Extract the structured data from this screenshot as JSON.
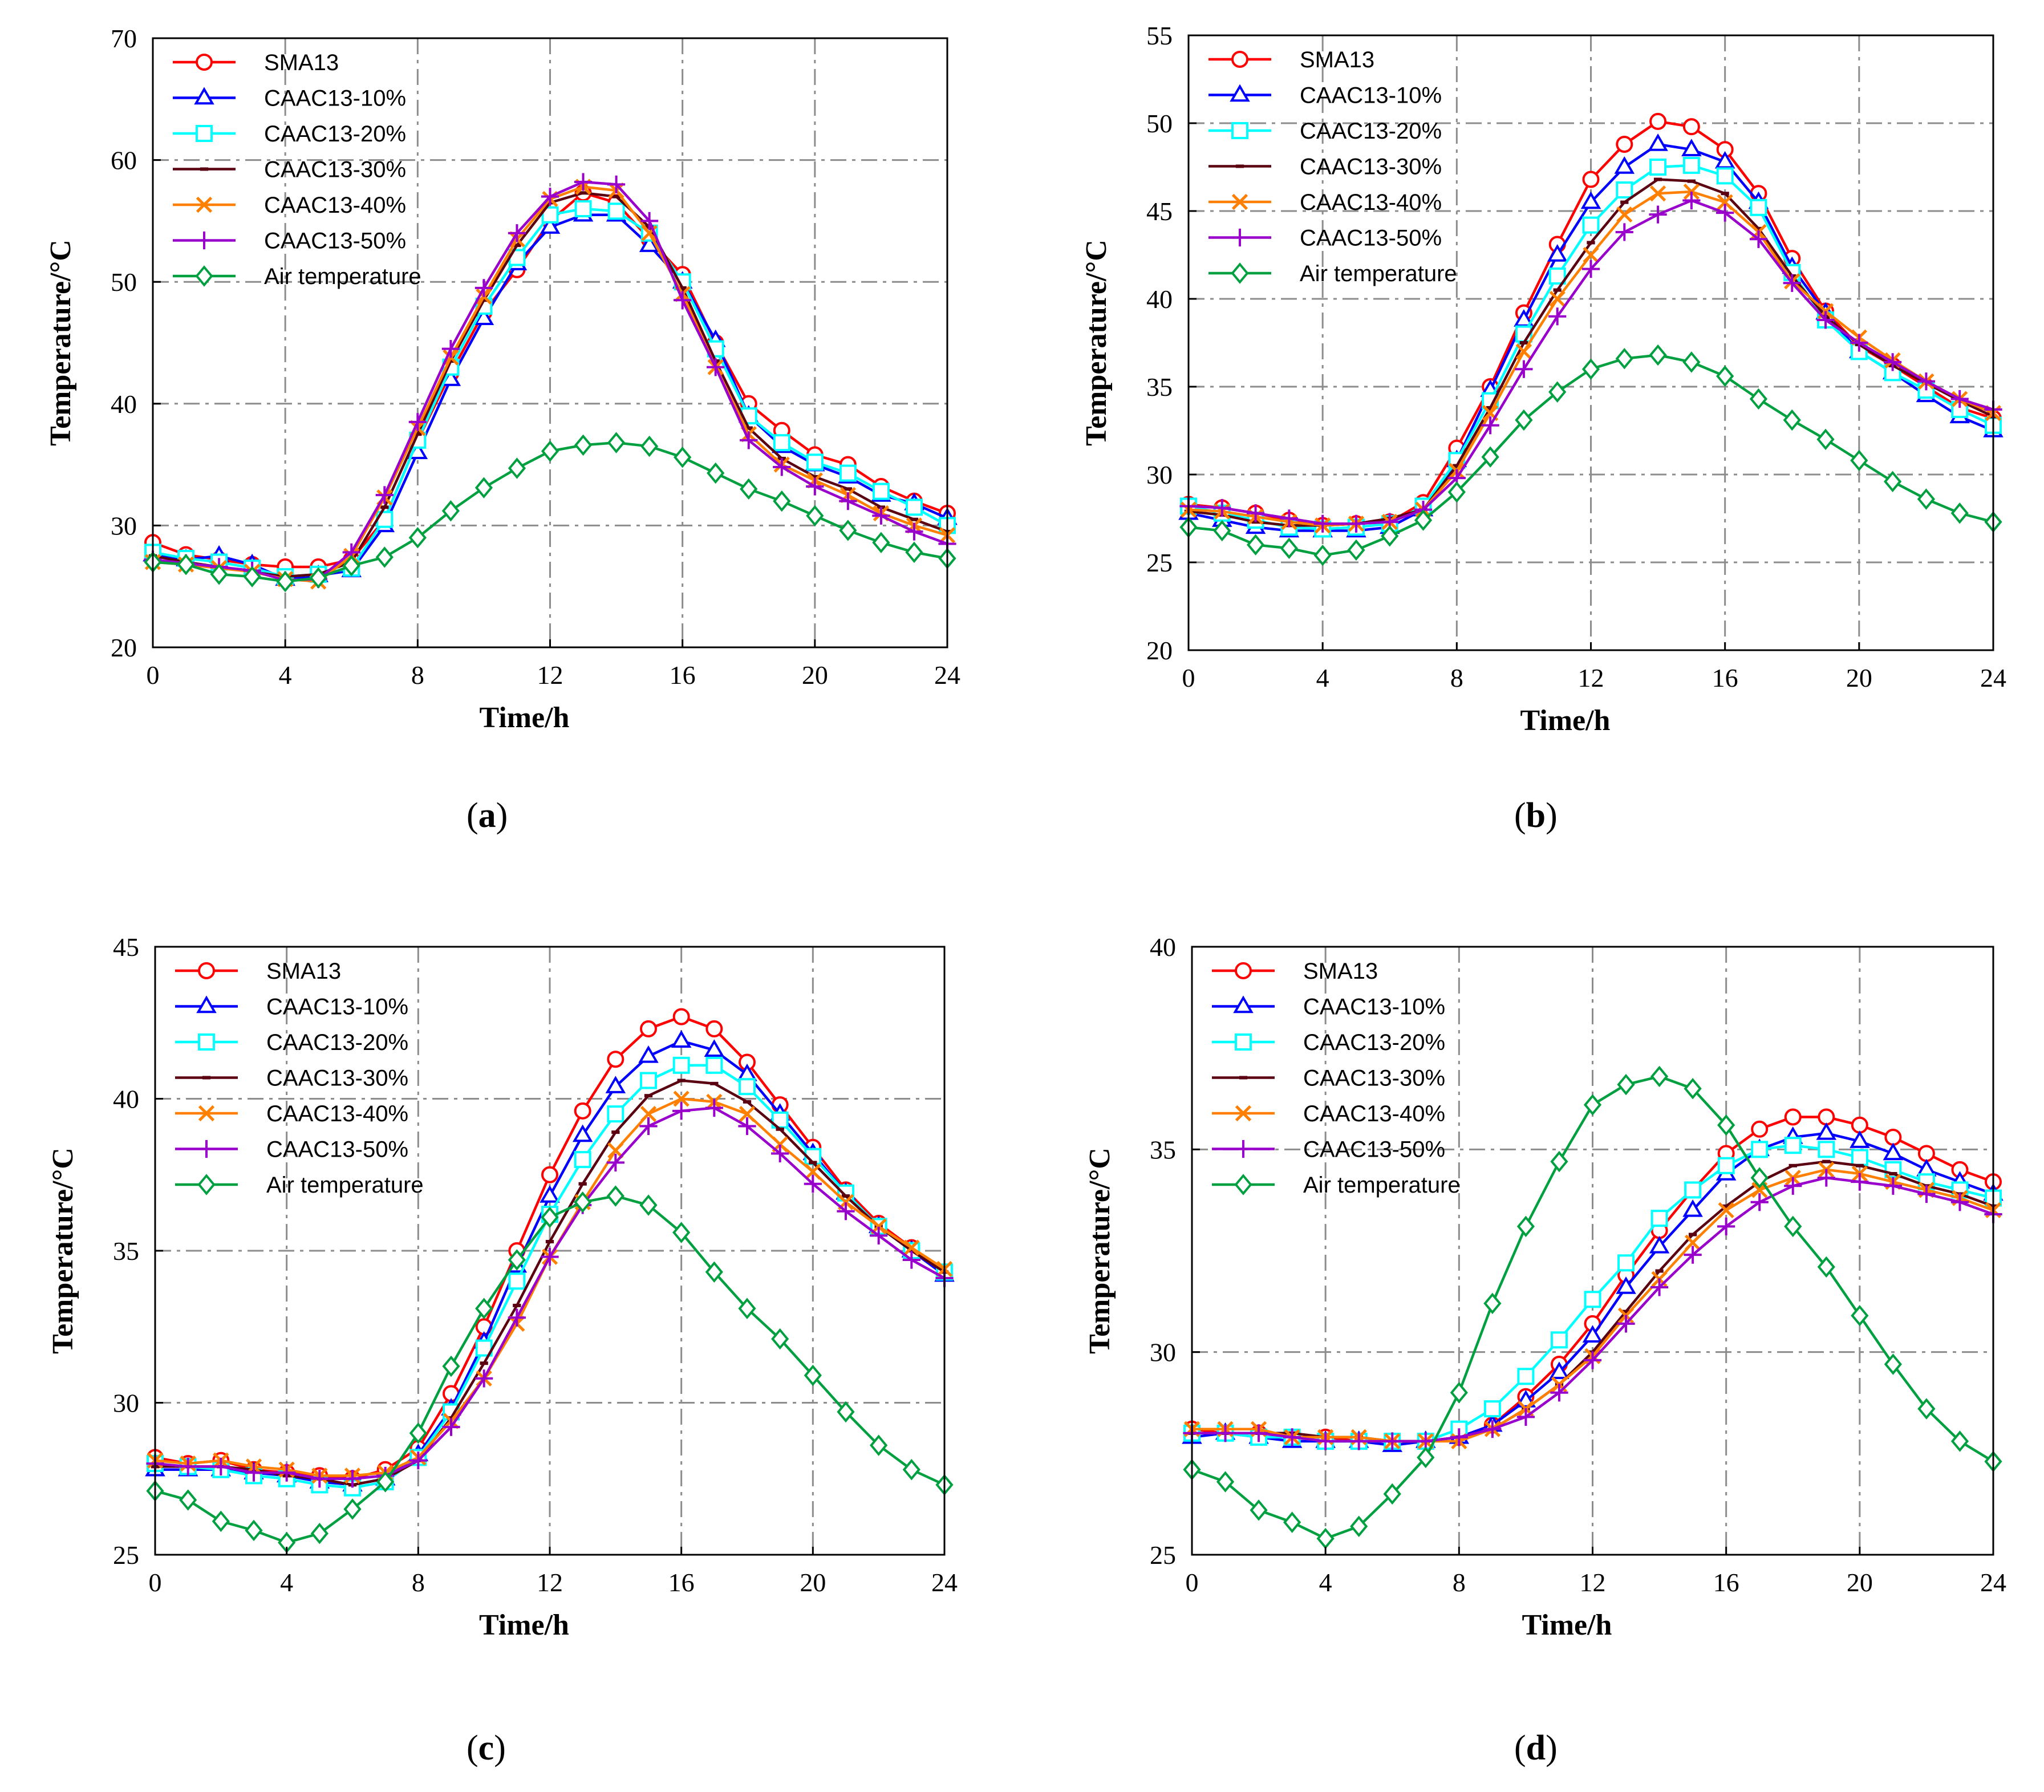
{
  "chart_data": [
    {
      "panel": "(a)",
      "type": "line",
      "xlabel": "Time/h",
      "ylabel": "Temperature/°C",
      "xlim": [
        0,
        24
      ],
      "ylim": [
        20,
        70
      ],
      "xticks": [
        0,
        4,
        8,
        12,
        16,
        20,
        24
      ],
      "yticks": [
        20,
        30,
        40,
        50,
        60,
        70
      ],
      "grid": true,
      "legend": "top-left",
      "x": [
        0,
        1,
        2,
        3,
        4,
        5,
        6,
        7,
        8,
        9,
        10,
        11,
        12,
        13,
        14,
        15,
        16,
        17,
        18,
        19,
        20,
        21,
        22,
        23,
        24
      ],
      "series": [
        {
          "name": "SMA13",
          "color": "#ff0000",
          "marker": "circle",
          "values": [
            28.6,
            27.6,
            27.2,
            26.8,
            26.6,
            26.6,
            27.2,
            30.5,
            37.0,
            42.5,
            47.5,
            51.0,
            55.0,
            57.3,
            56.5,
            53.5,
            50.6,
            45.0,
            40.0,
            37.8,
            35.8,
            35.0,
            33.2,
            32.0,
            31.0
          ]
        },
        {
          "name": "CAAC13-10%",
          "color": "#0000ff",
          "marker": "triangle",
          "values": [
            27.6,
            27.2,
            27.5,
            26.8,
            25.6,
            25.9,
            26.3,
            30.0,
            36.0,
            42.0,
            47.0,
            51.5,
            54.5,
            55.5,
            55.5,
            53.0,
            50.0,
            45.2,
            39.0,
            36.5,
            35.0,
            34.0,
            32.5,
            31.8,
            30.6
          ]
        },
        {
          "name": "CAAC13-20%",
          "color": "#00ffff",
          "marker": "square",
          "values": [
            27.8,
            27.3,
            27.0,
            26.5,
            25.8,
            26.0,
            26.5,
            30.5,
            37.0,
            43.0,
            48.0,
            52.0,
            55.5,
            56.0,
            55.8,
            54.0,
            50.0,
            44.5,
            39.0,
            36.8,
            35.2,
            34.3,
            32.8,
            31.5,
            30.0
          ]
        },
        {
          "name": "CAAC13-30%",
          "color": "#5a0010",
          "marker": "dash",
          "values": [
            27.5,
            27.0,
            26.6,
            26.2,
            25.8,
            26.0,
            27.0,
            31.5,
            37.5,
            43.5,
            48.5,
            53.0,
            56.5,
            57.3,
            57.0,
            54.5,
            49.5,
            43.5,
            38.0,
            35.5,
            34.0,
            33.0,
            31.5,
            30.5,
            29.5
          ]
        },
        {
          "name": "CAAC13-40%",
          "color": "#ff7f00",
          "marker": "x",
          "values": [
            27.0,
            26.8,
            26.5,
            26.2,
            25.6,
            25.4,
            27.5,
            32.3,
            38.0,
            43.8,
            48.8,
            53.5,
            56.8,
            57.8,
            57.5,
            54.0,
            49.0,
            43.0,
            37.5,
            35.0,
            33.7,
            32.5,
            31.0,
            30.0,
            29.2
          ]
        },
        {
          "name": "CAAC13-50%",
          "color": "#9900cc",
          "marker": "plus",
          "values": [
            27.2,
            26.9,
            26.6,
            26.3,
            25.5,
            25.6,
            27.8,
            32.5,
            38.5,
            44.5,
            49.5,
            54.0,
            57.0,
            58.2,
            58.0,
            55.0,
            48.5,
            43.0,
            37.0,
            34.8,
            33.2,
            32.0,
            30.8,
            29.5,
            28.5
          ]
        },
        {
          "name": "Air temperature",
          "color": "#00a040",
          "marker": "diamond",
          "values": [
            27.0,
            26.8,
            26.0,
            25.8,
            25.4,
            25.7,
            26.7,
            27.4,
            29.0,
            31.2,
            33.1,
            34.7,
            36.1,
            36.6,
            36.8,
            36.5,
            35.6,
            34.3,
            33.0,
            32.0,
            30.8,
            29.6,
            28.6,
            27.8,
            27.3
          ]
        }
      ]
    },
    {
      "panel": "(b)",
      "type": "line",
      "xlabel": "Time/h",
      "ylabel": "Temperature/°C",
      "xlim": [
        0,
        24
      ],
      "ylim": [
        20,
        55
      ],
      "xticks": [
        0,
        4,
        8,
        12,
        16,
        20,
        24
      ],
      "yticks": [
        20,
        25,
        30,
        35,
        40,
        45,
        50,
        55
      ],
      "grid": true,
      "legend": "top-left",
      "x": [
        0,
        1,
        2,
        3,
        4,
        5,
        6,
        7,
        8,
        9,
        10,
        11,
        12,
        13,
        14,
        15,
        16,
        17,
        18,
        19,
        20,
        21,
        22,
        23,
        24
      ],
      "series": [
        {
          "name": "SMA13",
          "color": "#ff0000",
          "marker": "circle",
          "values": [
            28.3,
            28.1,
            27.8,
            27.4,
            27.1,
            27.2,
            27.3,
            28.4,
            31.5,
            35.0,
            39.2,
            43.1,
            46.8,
            48.8,
            50.1,
            49.8,
            48.5,
            46.0,
            42.3,
            39.3,
            37.3,
            36.2,
            35.0,
            33.8,
            33.2
          ]
        },
        {
          "name": "CAAC13-10%",
          "color": "#0000ff",
          "marker": "triangle",
          "values": [
            27.8,
            27.4,
            27.0,
            26.8,
            26.8,
            26.8,
            27.0,
            28.0,
            30.8,
            34.8,
            38.8,
            42.5,
            45.5,
            47.5,
            48.8,
            48.5,
            47.8,
            45.5,
            41.8,
            39.2,
            37.0,
            35.8,
            34.5,
            33.3,
            32.5
          ]
        },
        {
          "name": "CAAC13-20%",
          "color": "#00ffff",
          "marker": "square",
          "values": [
            28.2,
            27.8,
            27.4,
            27.0,
            26.9,
            27.0,
            27.2,
            28.2,
            30.8,
            34.2,
            38.0,
            41.3,
            44.2,
            46.2,
            47.5,
            47.6,
            47.0,
            45.2,
            41.5,
            38.8,
            37.0,
            35.8,
            34.8,
            33.7,
            32.8
          ]
        },
        {
          "name": "CAAC13-30%",
          "color": "#5a0010",
          "marker": "dash",
          "values": [
            27.9,
            27.7,
            27.3,
            27.1,
            27.1,
            27.2,
            27.5,
            28.0,
            30.5,
            33.8,
            37.5,
            40.5,
            43.2,
            45.5,
            46.8,
            46.7,
            46.0,
            44.0,
            41.3,
            39.0,
            37.4,
            36.2,
            35.2,
            34.2,
            33.3
          ]
        },
        {
          "name": "CAAC13-40%",
          "color": "#ff7f00",
          "marker": "x",
          "values": [
            28.0,
            27.9,
            27.6,
            27.3,
            27.1,
            27.2,
            27.3,
            28.0,
            30.2,
            33.5,
            37.0,
            40.0,
            42.5,
            44.8,
            46.0,
            46.1,
            45.5,
            43.8,
            41.0,
            39.3,
            37.8,
            36.5,
            35.3,
            34.3,
            33.5
          ]
        },
        {
          "name": "CAAC13-50%",
          "color": "#9900cc",
          "marker": "plus",
          "values": [
            28.2,
            28.1,
            27.8,
            27.5,
            27.2,
            27.2,
            27.3,
            28.0,
            29.8,
            32.8,
            36.0,
            39.0,
            41.7,
            43.8,
            44.8,
            45.6,
            44.9,
            43.4,
            40.9,
            38.8,
            37.5,
            36.4,
            35.3,
            34.3,
            33.7
          ]
        },
        {
          "name": "Air temperature",
          "color": "#00a040",
          "marker": "diamond",
          "values": [
            27.0,
            26.8,
            26.0,
            25.8,
            25.4,
            25.7,
            26.5,
            27.4,
            29.0,
            31.0,
            33.1,
            34.7,
            36.0,
            36.6,
            36.8,
            36.4,
            35.6,
            34.3,
            33.1,
            32.0,
            30.8,
            29.6,
            28.6,
            27.8,
            27.3
          ]
        }
      ]
    },
    {
      "panel": "(c)",
      "type": "line",
      "xlabel": "Time/h",
      "ylabel": "Temperature/°C",
      "xlim": [
        0,
        24
      ],
      "ylim": [
        25,
        45
      ],
      "xticks": [
        0,
        4,
        8,
        12,
        16,
        20,
        24
      ],
      "yticks": [
        25,
        30,
        35,
        40,
        45
      ],
      "grid": true,
      "legend": "top-left",
      "x": [
        0,
        1,
        2,
        3,
        4,
        5,
        6,
        7,
        8,
        9,
        10,
        11,
        12,
        13,
        14,
        15,
        16,
        17,
        18,
        19,
        20,
        21,
        22,
        23,
        24
      ],
      "series": [
        {
          "name": "SMA13",
          "color": "#ff0000",
          "marker": "circle",
          "values": [
            28.2,
            28.0,
            28.1,
            27.8,
            27.7,
            27.6,
            27.5,
            27.8,
            28.5,
            30.3,
            32.5,
            35.0,
            37.5,
            39.6,
            41.3,
            42.3,
            42.7,
            42.3,
            41.2,
            39.8,
            38.4,
            37.0,
            35.9,
            35.1,
            34.3
          ]
        },
        {
          "name": "CAAC13-10%",
          "color": "#0000ff",
          "marker": "triangle",
          "values": [
            27.8,
            27.8,
            27.8,
            27.7,
            27.6,
            27.4,
            27.3,
            27.5,
            28.3,
            29.8,
            32.0,
            34.5,
            36.8,
            38.8,
            40.4,
            41.4,
            41.9,
            41.6,
            40.8,
            39.5,
            38.2,
            36.9,
            35.8,
            35.0,
            34.2
          ]
        },
        {
          "name": "CAAC13-20%",
          "color": "#00ffff",
          "marker": "square",
          "values": [
            28.0,
            27.9,
            27.8,
            27.6,
            27.5,
            27.3,
            27.2,
            27.4,
            28.2,
            29.7,
            31.8,
            34.0,
            36.2,
            38.0,
            39.5,
            40.6,
            41.1,
            41.1,
            40.4,
            39.3,
            38.1,
            36.9,
            35.8,
            35.0,
            34.3
          ]
        },
        {
          "name": "CAAC13-30%",
          "color": "#5a0010",
          "marker": "dash",
          "values": [
            27.9,
            27.9,
            27.9,
            27.8,
            27.6,
            27.5,
            27.3,
            27.5,
            28.1,
            29.5,
            31.3,
            33.2,
            35.3,
            37.2,
            38.9,
            40.1,
            40.6,
            40.5,
            39.9,
            39.0,
            37.9,
            36.8,
            35.8,
            35.0,
            34.3
          ]
        },
        {
          "name": "CAAC13-40%",
          "color": "#ff7f00",
          "marker": "x",
          "values": [
            28.1,
            28.0,
            28.1,
            27.9,
            27.8,
            27.6,
            27.6,
            27.7,
            28.2,
            29.4,
            30.8,
            32.6,
            34.8,
            36.6,
            38.3,
            39.5,
            40.0,
            39.9,
            39.5,
            38.5,
            37.6,
            36.6,
            35.8,
            35.1,
            34.4
          ]
        },
        {
          "name": "CAAC13-50%",
          "color": "#9900cc",
          "marker": "plus",
          "values": [
            28.0,
            27.9,
            27.9,
            27.7,
            27.7,
            27.5,
            27.5,
            27.6,
            28.1,
            29.2,
            30.8,
            32.8,
            34.8,
            36.5,
            37.9,
            39.1,
            39.6,
            39.7,
            39.1,
            38.2,
            37.2,
            36.3,
            35.5,
            34.7,
            34.1
          ]
        },
        {
          "name": "Air temperature",
          "color": "#00a040",
          "marker": "diamond",
          "values": [
            27.1,
            26.8,
            26.1,
            25.8,
            25.4,
            25.7,
            26.5,
            27.4,
            29.0,
            31.2,
            33.1,
            34.7,
            36.1,
            36.6,
            36.8,
            36.5,
            35.6,
            34.3,
            33.1,
            32.1,
            30.9,
            29.7,
            28.6,
            27.8,
            27.3
          ]
        }
      ]
    },
    {
      "panel": "(d)",
      "type": "line",
      "xlabel": "Time/h",
      "ylabel": "Temperature/°C",
      "xlim": [
        0,
        24
      ],
      "ylim": [
        25,
        40
      ],
      "xticks": [
        0,
        4,
        8,
        12,
        16,
        20,
        24
      ],
      "yticks": [
        25,
        30,
        35,
        40
      ],
      "grid": true,
      "legend": "top-left",
      "x": [
        0,
        1,
        2,
        3,
        4,
        5,
        6,
        7,
        8,
        9,
        10,
        11,
        12,
        13,
        14,
        15,
        16,
        17,
        18,
        19,
        20,
        21,
        22,
        23,
        24
      ],
      "series": [
        {
          "name": "SMA13",
          "color": "#ff0000",
          "marker": "circle",
          "values": [
            28.1,
            28.0,
            28.0,
            27.9,
            27.9,
            27.8,
            27.8,
            27.8,
            27.9,
            28.2,
            28.9,
            29.7,
            30.7,
            31.9,
            33.0,
            34.0,
            34.9,
            35.5,
            35.8,
            35.8,
            35.6,
            35.3,
            34.9,
            34.5,
            34.2
          ]
        },
        {
          "name": "CAAC13-10%",
          "color": "#0000ff",
          "marker": "triangle",
          "values": [
            27.9,
            28.0,
            27.9,
            27.8,
            27.8,
            27.8,
            27.7,
            27.8,
            27.9,
            28.2,
            28.8,
            29.5,
            30.4,
            31.6,
            32.6,
            33.5,
            34.4,
            35.0,
            35.3,
            35.4,
            35.2,
            34.9,
            34.5,
            34.2,
            33.9
          ]
        },
        {
          "name": "CAAC13-20%",
          "color": "#00ffff",
          "marker": "square",
          "values": [
            28.0,
            28.0,
            27.9,
            27.9,
            27.8,
            27.8,
            27.8,
            27.8,
            28.1,
            28.6,
            29.4,
            30.3,
            31.3,
            32.2,
            33.3,
            34.0,
            34.6,
            35.0,
            35.1,
            35.0,
            34.8,
            34.5,
            34.2,
            34.0,
            33.8
          ]
        },
        {
          "name": "CAAC13-30%",
          "color": "#5a0010",
          "marker": "dash",
          "values": [
            28.0,
            28.0,
            28.0,
            28.0,
            27.9,
            27.9,
            27.8,
            27.8,
            27.9,
            28.1,
            28.6,
            29.2,
            30.0,
            31.0,
            32.0,
            32.9,
            33.6,
            34.2,
            34.6,
            34.7,
            34.6,
            34.4,
            34.1,
            33.9,
            33.6
          ]
        },
        {
          "name": "CAAC13-40%",
          "color": "#ff7f00",
          "marker": "x",
          "values": [
            28.1,
            28.1,
            28.1,
            27.9,
            27.9,
            27.9,
            27.8,
            27.8,
            27.8,
            28.1,
            28.6,
            29.2,
            29.9,
            30.9,
            31.8,
            32.7,
            33.5,
            34.0,
            34.3,
            34.5,
            34.4,
            34.2,
            34.0,
            33.8,
            33.5
          ]
        },
        {
          "name": "CAAC13-50%",
          "color": "#9900cc",
          "marker": "plus",
          "values": [
            28.0,
            28.0,
            28.0,
            27.9,
            27.8,
            27.8,
            27.8,
            27.8,
            27.9,
            28.1,
            28.4,
            29.0,
            29.8,
            30.7,
            31.6,
            32.4,
            33.1,
            33.7,
            34.1,
            34.3,
            34.2,
            34.1,
            33.9,
            33.7,
            33.4
          ]
        },
        {
          "name": "Air temperature",
          "color": "#00a040",
          "marker": "diamond",
          "values": [
            27.1,
            26.8,
            26.1,
            25.8,
            25.4,
            25.7,
            26.5,
            27.4,
            29.0,
            31.2,
            33.1,
            34.7,
            36.1,
            36.6,
            36.8,
            36.5,
            35.6,
            34.3,
            33.1,
            32.1,
            30.9,
            29.7,
            28.6,
            27.8,
            27.3
          ]
        }
      ]
    }
  ],
  "captions": [
    "(a)",
    "(b)",
    "(c)",
    "(d)"
  ]
}
